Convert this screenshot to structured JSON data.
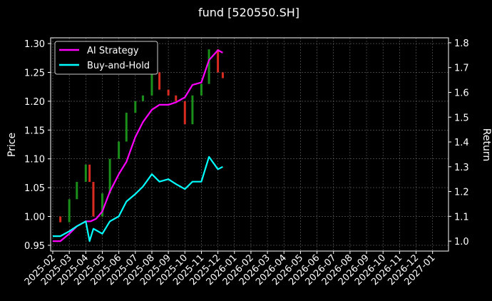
{
  "chart_data": {
    "type": "line",
    "title": "fund [520550.SH]",
    "ylabel_left": "Price",
    "ylabel_right": "Return",
    "background": "#000000",
    "grid": true,
    "legend_placement": "top-left",
    "x_tick_labels": [
      "2025-02",
      "2025-03",
      "2025-04",
      "2025-05",
      "2025-06",
      "2025-07",
      "2025-08",
      "2025-09",
      "2025-10",
      "2025-11",
      "2025-12",
      "2026-01",
      "2026-02",
      "2026-03",
      "2026-04",
      "2026-05",
      "2026-06",
      "2026-07",
      "2026-08",
      "2026-09",
      "2026-10",
      "2026-11",
      "2026-12",
      "2027-01"
    ],
    "y_left_ticks": [
      "0.95",
      "1.00",
      "1.05",
      "1.10",
      "1.15",
      "1.20",
      "1.25",
      "1.30"
    ],
    "y_left_lim": [
      0.94,
      1.31
    ],
    "y_right_ticks": [
      "1.0",
      "1.1",
      "1.2",
      "1.3",
      "1.4",
      "1.5",
      "1.6",
      "1.7",
      "1.8"
    ],
    "y_right_lim": [
      0.96,
      1.82
    ],
    "series": [
      {
        "name": "AI Strategy",
        "axis": "right",
        "color": "#ff00ff",
        "x": [
          "2025-02-01",
          "2025-02-15",
          "2025-03-01",
          "2025-03-15",
          "2025-04-01",
          "2025-04-10",
          "2025-04-20",
          "2025-05-01",
          "2025-05-15",
          "2025-06-01",
          "2025-06-15",
          "2025-07-01",
          "2025-07-15",
          "2025-08-01",
          "2025-08-15",
          "2025-09-01",
          "2025-09-15",
          "2025-10-01",
          "2025-10-15",
          "2025-11-01",
          "2025-11-15",
          "2025-12-01",
          "2025-12-10"
        ],
        "y": [
          1.0,
          1.0,
          1.03,
          1.06,
          1.08,
          1.08,
          1.09,
          1.12,
          1.2,
          1.27,
          1.32,
          1.42,
          1.48,
          1.53,
          1.55,
          1.55,
          1.56,
          1.58,
          1.63,
          1.64,
          1.73,
          1.77,
          1.76
        ]
      },
      {
        "name": "Buy-and-Hold",
        "axis": "right",
        "color": "#00ffff",
        "x": [
          "2025-02-01",
          "2025-02-15",
          "2025-03-01",
          "2025-03-15",
          "2025-04-01",
          "2025-04-08",
          "2025-04-15",
          "2025-05-01",
          "2025-05-15",
          "2025-06-01",
          "2025-06-15",
          "2025-07-01",
          "2025-07-15",
          "2025-08-01",
          "2025-08-15",
          "2025-09-01",
          "2025-09-15",
          "2025-10-01",
          "2025-10-15",
          "2025-11-01",
          "2025-11-15",
          "2025-12-01",
          "2025-12-10"
        ],
        "y": [
          1.02,
          1.02,
          1.04,
          1.06,
          1.08,
          1.0,
          1.05,
          1.03,
          1.08,
          1.1,
          1.16,
          1.19,
          1.22,
          1.27,
          1.24,
          1.25,
          1.23,
          1.21,
          1.24,
          1.24,
          1.34,
          1.29,
          1.3
        ]
      }
    ],
    "price_series": {
      "axis": "left",
      "up_color": "#1a8f1a",
      "down_color": "#d92b1f",
      "x": [
        "2025-02-01",
        "2025-02-15",
        "2025-03-01",
        "2025-03-15",
        "2025-04-01",
        "2025-04-08",
        "2025-04-15",
        "2025-05-01",
        "2025-05-15",
        "2025-06-01",
        "2025-06-15",
        "2025-07-01",
        "2025-07-15",
        "2025-08-01",
        "2025-08-15",
        "2025-09-01",
        "2025-09-15",
        "2025-10-01",
        "2025-10-15",
        "2025-11-01",
        "2025-11-15",
        "2025-12-01",
        "2025-12-10"
      ],
      "y": [
        1.0,
        0.99,
        1.03,
        1.06,
        1.09,
        1.06,
        1.0,
        1.04,
        1.1,
        1.13,
        1.18,
        1.2,
        1.21,
        1.25,
        1.22,
        1.21,
        1.2,
        1.16,
        1.21,
        1.23,
        1.29,
        1.25,
        1.24
      ]
    }
  }
}
